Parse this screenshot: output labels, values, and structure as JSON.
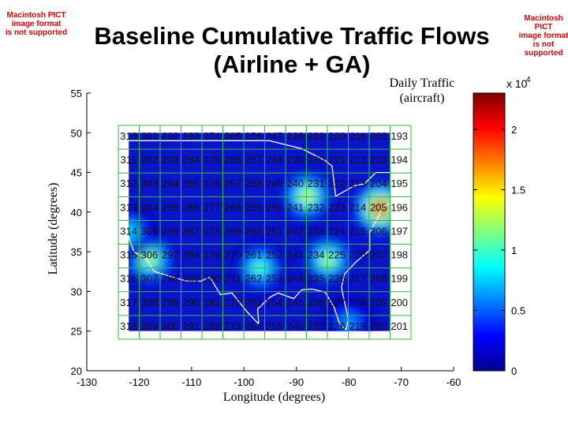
{
  "pict_notice": [
    "Macintosh PICT",
    "image format",
    "is not supported"
  ],
  "chart_data": {
    "type": "heatmap",
    "title": [
      "Baseline Cumulative Traffic Flows",
      "(Airline + GA)"
    ],
    "xlabel": "Longitude (degrees)",
    "ylabel": "Latitude (degrees)",
    "xlim": [
      -130,
      -60
    ],
    "ylim": [
      20,
      55
    ],
    "xticks": [
      "-130",
      "-120",
      "-110",
      "-100",
      "-90",
      "-80",
      "-70",
      "-60"
    ],
    "yticks": [
      "55",
      "50",
      "45",
      "40",
      "35",
      "30",
      "25",
      "20"
    ],
    "colorbar": {
      "label": [
        "Daily Traffic",
        "(aircraft)"
      ],
      "multiplier": "x 10",
      "exponent": "4",
      "range": [
        0,
        2.3
      ],
      "ticks": [
        "0",
        "0.5",
        "1",
        "1.5",
        "2"
      ]
    },
    "grid_x_edges": [
      -122,
      -72
    ],
    "grid_y_edges": [
      25,
      50
    ],
    "cell_ids": [
      [
        310,
        301,
        292,
        283,
        274,
        265,
        256,
        247,
        238,
        229,
        220,
        211,
        202,
        193
      ],
      [
        311,
        302,
        293,
        284,
        275,
        266,
        257,
        248,
        239,
        230,
        221,
        212,
        203,
        194
      ],
      [
        312,
        303,
        294,
        285,
        276,
        267,
        258,
        249,
        240,
        231,
        222,
        213,
        204,
        195
      ],
      [
        313,
        304,
        295,
        286,
        277,
        268,
        259,
        250,
        241,
        232,
        223,
        214,
        205,
        196
      ],
      [
        314,
        305,
        296,
        287,
        278,
        269,
        260,
        251,
        242,
        233,
        224,
        215,
        206,
        197
      ],
      [
        315,
        306,
        297,
        288,
        279,
        270,
        261,
        252,
        243,
        234,
        225,
        216,
        207,
        198
      ],
      [
        316,
        307,
        298,
        289,
        280,
        271,
        262,
        253,
        244,
        235,
        226,
        217,
        208,
        199
      ],
      [
        317,
        308,
        299,
        290,
        281,
        272,
        263,
        254,
        245,
        236,
        227,
        218,
        209,
        200
      ],
      [
        318,
        309,
        300,
        291,
        282,
        273,
        264,
        255,
        246,
        237,
        228,
        219,
        210,
        201
      ]
    ],
    "hotspots": [
      {
        "lon": -74,
        "lat": 40.5,
        "value": 2.2
      },
      {
        "lon": -84,
        "lat": 34,
        "value": 1.3
      },
      {
        "lon": -88,
        "lat": 42,
        "value": 1.4
      },
      {
        "lon": -118,
        "lat": 34,
        "value": 1.3
      },
      {
        "lon": -122,
        "lat": 37.5,
        "value": 0.9
      },
      {
        "lon": -97,
        "lat": 33,
        "value": 1.1
      },
      {
        "lon": -80,
        "lat": 26,
        "value": 0.7
      }
    ]
  }
}
